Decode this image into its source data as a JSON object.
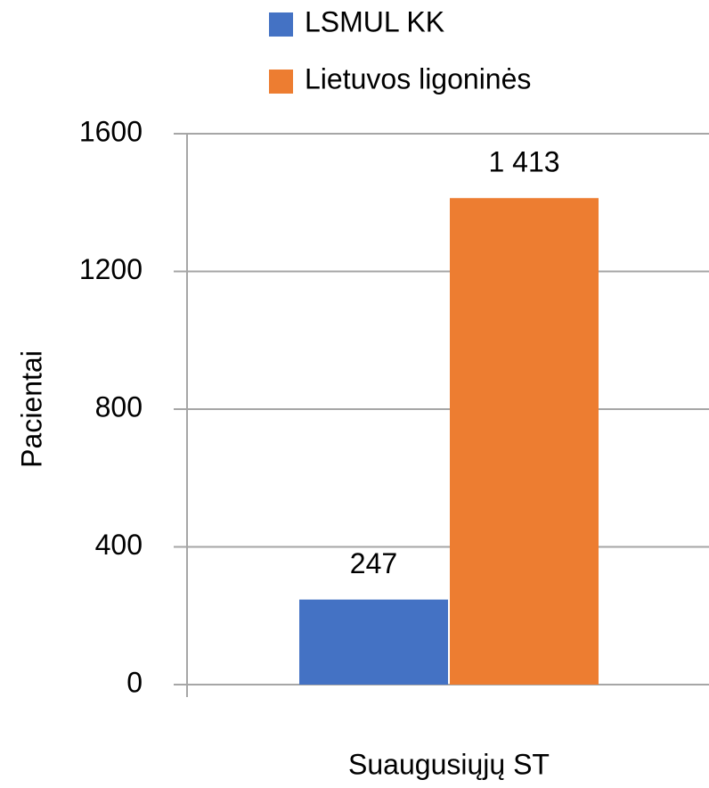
{
  "chart_data": {
    "type": "bar",
    "categories": [
      "Suaugusiųjų ST"
    ],
    "series": [
      {
        "name": "LSMUL KK",
        "color": "#4472c4",
        "values": [
          247
        ],
        "value_labels": [
          "247"
        ]
      },
      {
        "name": "Lietuvos ligoninės",
        "color": "#ed7d31",
        "values": [
          1413
        ],
        "value_labels": [
          "1 413"
        ]
      }
    ],
    "ylabel": "Pacientai",
    "ylim": [
      0,
      1600
    ],
    "yticks": [
      0,
      400,
      800,
      1200,
      1600
    ],
    "grid": true,
    "legend": "top"
  }
}
